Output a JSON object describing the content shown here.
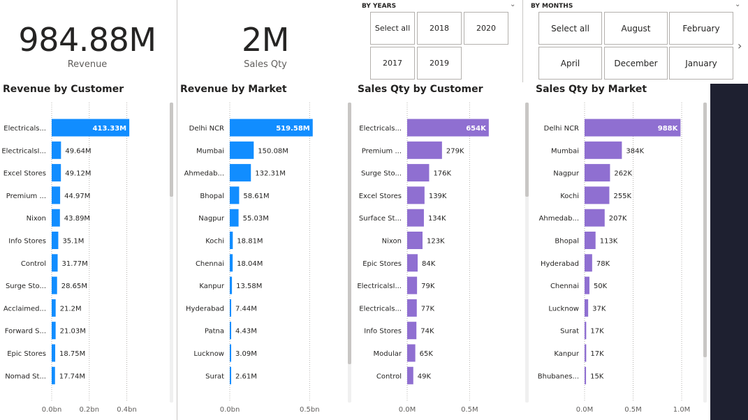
{
  "cards": [
    {
      "value": "984.88M",
      "label": "Revenue"
    },
    {
      "value": "2M",
      "label": "Sales Qty"
    }
  ],
  "slicers": {
    "years": {
      "title": "BY YEARS",
      "options": [
        "Select all",
        "2018",
        "2020",
        "2017",
        "2019"
      ]
    },
    "months": {
      "title": "BY MONTHS",
      "options": [
        "Select all",
        "August",
        "February",
        "April",
        "December",
        "January"
      ]
    }
  },
  "icons": {
    "slicer_dropdown": "chevron-down-icon",
    "slicer_next": "chevron-right-icon"
  },
  "colors": {
    "revenue_bar": "#118DFF",
    "qty_bar": "#8F6FD1",
    "dark_panel": "#1E2030"
  },
  "chart_data": [
    {
      "type": "bar",
      "orientation": "horizontal",
      "title": "Revenue by Customer",
      "color": "#118DFF",
      "categories": [
        "Electricals...",
        "ElectricalsI...",
        "Excel Stores",
        "Premium ...",
        "Nixon",
        "Info Stores",
        "Control",
        "Surge Sto...",
        "Acclaimed...",
        "Forward S...",
        "Epic Stores",
        "Nomad St..."
      ],
      "values": [
        413.33,
        49.64,
        49.12,
        44.97,
        43.89,
        35.1,
        31.77,
        28.65,
        21.2,
        21.03,
        18.75,
        17.74
      ],
      "value_unit": "M",
      "data_labels": [
        "413.33M",
        "49.64M",
        "49.12M",
        "44.97M",
        "43.89M",
        "35.1M",
        "31.77M",
        "28.65M",
        "21.2M",
        "21.03M",
        "18.75M",
        "17.74M"
      ],
      "xlim": [
        0,
        450
      ],
      "x_ticks": [
        0,
        200,
        400
      ],
      "x_tick_labels": [
        "0.0bn",
        "0.2bn",
        "0.4bn"
      ],
      "grid": true
    },
    {
      "type": "bar",
      "orientation": "horizontal",
      "title": "Revenue by Market",
      "color": "#118DFF",
      "categories": [
        "Delhi NCR",
        "Mumbai",
        "Ahmedab...",
        "Bhopal",
        "Nagpur",
        "Kochi",
        "Chennai",
        "Kanpur",
        "Hyderabad",
        "Patna",
        "Lucknow",
        "Surat"
      ],
      "values": [
        519.58,
        150.08,
        132.31,
        58.61,
        55.03,
        18.81,
        18.04,
        13.58,
        7.44,
        4.43,
        3.09,
        2.61
      ],
      "value_unit": "M",
      "data_labels": [
        "519.58M",
        "150.08M",
        "132.31M",
        "58.61M",
        "55.03M",
        "18.81M",
        "18.04M",
        "13.58M",
        "7.44M",
        "4.43M",
        "3.09M",
        "2.61M"
      ],
      "xlim": [
        0,
        560
      ],
      "x_ticks": [
        0,
        500
      ],
      "x_tick_labels": [
        "0.0bn",
        "0.5bn"
      ],
      "grid": true
    },
    {
      "type": "bar",
      "orientation": "horizontal",
      "title": "Sales Qty by Customer",
      "color": "#8F6FD1",
      "categories": [
        "Electricals...",
        "Premium ...",
        "Surge Sto...",
        "Excel Stores",
        "Surface St...",
        "Nixon",
        "Epic Stores",
        "ElectricalsI...",
        "Electricals...",
        "Info Stores",
        "Modular",
        "Control"
      ],
      "values": [
        654,
        279,
        176,
        139,
        134,
        123,
        84,
        79,
        77,
        74,
        65,
        49
      ],
      "value_unit": "K",
      "data_labels": [
        "654K",
        "279K",
        "176K",
        "139K",
        "134K",
        "123K",
        "84K",
        "79K",
        "77K",
        "74K",
        "65K",
        "49K"
      ],
      "xlim": [
        0,
        750
      ],
      "x_ticks": [
        0,
        500
      ],
      "x_tick_labels": [
        "0.0M",
        "0.5M"
      ],
      "grid": true
    },
    {
      "type": "bar",
      "orientation": "horizontal",
      "title": "Sales Qty by Market",
      "color": "#8F6FD1",
      "categories": [
        "Delhi NCR",
        "Mumbai",
        "Nagpur",
        "Kochi",
        "Ahmedab...",
        "Bhopal",
        "Hyderabad",
        "Chennai",
        "Lucknow",
        "Surat",
        "Kanpur",
        "Bhubanes..."
      ],
      "values": [
        988,
        384,
        262,
        255,
        207,
        113,
        78,
        50,
        37,
        17,
        17,
        15
      ],
      "value_unit": "K",
      "data_labels": [
        "988K",
        "384K",
        "262K",
        "255K",
        "207K",
        "113K",
        "78K",
        "50K",
        "37K",
        "17K",
        "17K",
        "15K"
      ],
      "xlim": [
        0,
        1050
      ],
      "x_ticks": [
        0,
        500,
        1000
      ],
      "x_tick_labels": [
        "0.0M",
        "0.5M",
        "1.0M"
      ],
      "grid": true
    }
  ]
}
